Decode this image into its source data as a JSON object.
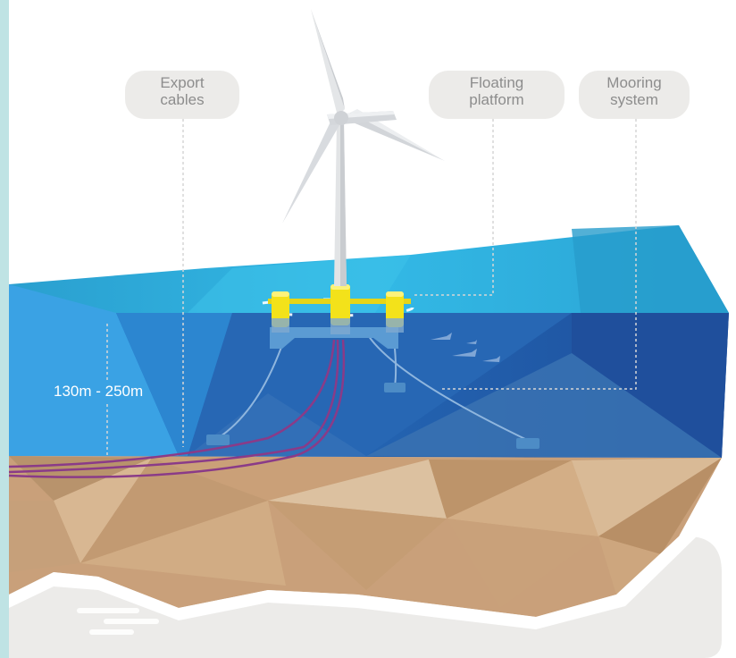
{
  "labels": {
    "export_cables": [
      "Export",
      "cables"
    ],
    "floating_platform": [
      "Floating",
      "platform"
    ],
    "mooring_system": [
      "Mooring",
      "system"
    ],
    "depth": "130m - 250m"
  },
  "colors": {
    "sea_surface": "#2fb6e0",
    "sea_deep": "#1e57a6",
    "seabed": "#caa176",
    "platform_yellow": "#f3e21a",
    "turbine": "#e4e6e8",
    "cable": "#8b3a86",
    "callout_bg": "#ecebe9",
    "callout_text": "#8d8d8d"
  }
}
